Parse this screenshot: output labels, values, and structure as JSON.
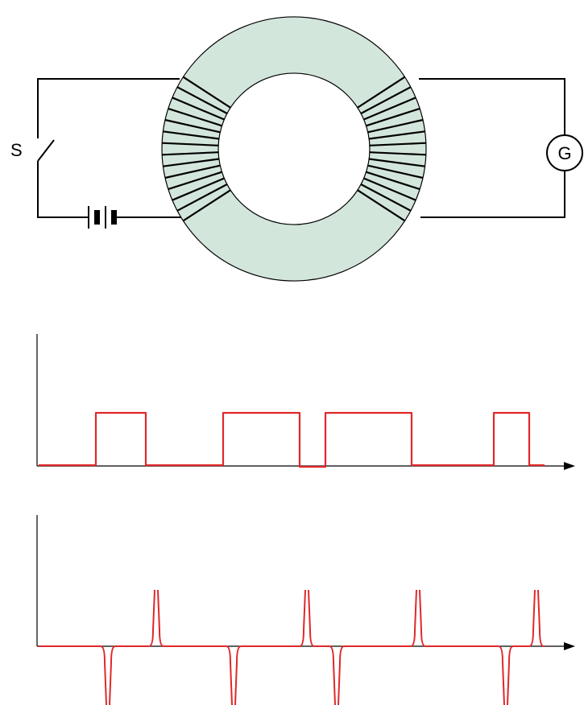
{
  "circuit": {
    "switch_label": "S",
    "galvanometer_label": "G",
    "core_color": "#d3e6dc"
  },
  "graph_top": {
    "signal_color": "#e0282a",
    "levels": [
      "low",
      "high",
      "low",
      "high",
      "low",
      "high",
      "low",
      "high",
      "low"
    ]
  },
  "graph_bottom": {
    "signal_color": "#e0282a",
    "spikes": [
      "down",
      "up",
      "down",
      "up",
      "down",
      "up",
      "down",
      "up"
    ]
  }
}
